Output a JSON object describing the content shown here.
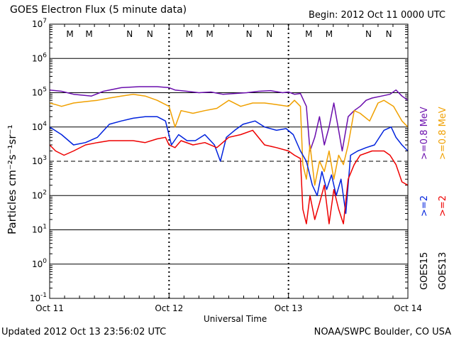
{
  "header": {
    "title": "GOES Electron Flux (5 minute data)",
    "begin": "Begin: 2012 Oct 11 0000 UTC"
  },
  "footer": {
    "updated": "Updated 2012 Oct 13 23:56:02 UTC",
    "credit": "NOAA/SWPC Boulder, CO USA"
  },
  "colors": {
    "gt2_goes15": "#0022dd",
    "gt2_goes13": "#ee0000",
    "gt08_goes15": "#6a0dad",
    "gt08_goes13": "#f0a000",
    "midnight_markers": "#0000cc",
    "noon_markers": "#cc0000"
  },
  "chart_data": {
    "type": "line",
    "title": "GOES Electron Flux (5 minute data)",
    "xlabel": "Universal Time",
    "ylabel": "Particles cm⁻²s⁻¹sr⁻¹",
    "yscale": "log",
    "ylim": [
      0.1,
      10000000
    ],
    "xlim_days": [
      0,
      3
    ],
    "x_tick_labels": [
      "Oct 11",
      "Oct 12",
      "Oct 13",
      "Oct 14"
    ],
    "y_tick_labels": [
      {
        "base": "10",
        "exp": "7"
      },
      {
        "base": "10",
        "exp": "6"
      },
      {
        "base": "10",
        "exp": "5"
      },
      {
        "base": "10",
        "exp": "4"
      },
      {
        "base": "10",
        "exp": "3"
      },
      {
        "base": "10",
        "exp": "2"
      },
      {
        "base": "10",
        "exp": "1"
      },
      {
        "base": "10",
        "exp": "0"
      },
      {
        "base": "10",
        "exp": "-1"
      }
    ],
    "threshold_line": 1000,
    "markers": [
      {
        "label": "M",
        "day": 0.17,
        "color": "noon"
      },
      {
        "label": "M",
        "day": 0.33,
        "color": "midnight"
      },
      {
        "label": "N",
        "day": 0.67,
        "color": "noon"
      },
      {
        "label": "N",
        "day": 0.84,
        "color": "midnight"
      },
      {
        "label": "M",
        "day": 1.17,
        "color": "noon"
      },
      {
        "label": "M",
        "day": 1.34,
        "color": "midnight"
      },
      {
        "label": "N",
        "day": 1.67,
        "color": "noon"
      },
      {
        "label": "N",
        "day": 1.84,
        "color": "midnight"
      },
      {
        "label": "M",
        "day": 2.17,
        "color": "noon"
      },
      {
        "label": "M",
        "day": 2.34,
        "color": "midnight"
      },
      {
        "label": "N",
        "day": 2.67,
        "color": "noon"
      },
      {
        "label": "N",
        "day": 2.84,
        "color": "midnight"
      }
    ],
    "series": [
      {
        "name": ">=0.8 MeV",
        "satellite": "GOES15",
        "color_key": "gt08_goes15",
        "x": [
          0,
          0.1,
          0.2,
          0.35,
          0.45,
          0.6,
          0.75,
          0.9,
          1.0,
          1.05,
          1.15,
          1.25,
          1.35,
          1.45,
          1.55,
          1.65,
          1.75,
          1.85,
          1.95,
          2.0,
          2.05,
          2.1,
          2.15,
          2.18,
          2.22,
          2.26,
          2.3,
          2.34,
          2.38,
          2.42,
          2.45,
          2.5,
          2.55,
          2.6,
          2.65,
          2.7,
          2.78,
          2.85,
          2.9,
          2.95,
          3.0
        ],
        "y": [
          120000,
          110000,
          90000,
          80000,
          110000,
          140000,
          150000,
          150000,
          140000,
          120000,
          110000,
          100000,
          105000,
          90000,
          95000,
          100000,
          110000,
          115000,
          100000,
          105000,
          90000,
          95000,
          40000,
          2000,
          5000,
          20000,
          3000,
          10000,
          50000,
          8000,
          2000,
          20000,
          30000,
          40000,
          60000,
          70000,
          80000,
          90000,
          120000,
          80000,
          60000
        ]
      },
      {
        "name": ">=0.8 MeV",
        "satellite": "GOES13",
        "color_key": "gt08_goes13",
        "x": [
          0,
          0.05,
          0.1,
          0.2,
          0.3,
          0.4,
          0.5,
          0.6,
          0.7,
          0.8,
          0.9,
          1.0,
          1.05,
          1.1,
          1.2,
          1.3,
          1.4,
          1.5,
          1.6,
          1.7,
          1.8,
          1.9,
          2.0,
          2.05,
          2.1,
          2.12,
          2.15,
          2.18,
          2.22,
          2.26,
          2.3,
          2.34,
          2.38,
          2.42,
          2.46,
          2.5,
          2.55,
          2.6,
          2.68,
          2.75,
          2.8,
          2.88,
          2.95,
          3.0
        ],
        "y": [
          50000,
          45000,
          40000,
          50000,
          55000,
          60000,
          70000,
          80000,
          90000,
          80000,
          60000,
          40000,
          10000,
          30000,
          25000,
          30000,
          35000,
          60000,
          40000,
          50000,
          50000,
          45000,
          40000,
          60000,
          40000,
          800,
          300,
          3000,
          200,
          1000,
          500,
          2000,
          300,
          1500,
          800,
          3000,
          30000,
          25000,
          15000,
          50000,
          60000,
          40000,
          15000,
          10000
        ]
      },
      {
        "name": ">=2 MeV",
        "satellite": "GOES15",
        "color_key": "gt2_goes15",
        "x": [
          0,
          0.1,
          0.2,
          0.3,
          0.4,
          0.5,
          0.6,
          0.7,
          0.8,
          0.9,
          0.97,
          1.02,
          1.08,
          1.15,
          1.22,
          1.3,
          1.38,
          1.43,
          1.48,
          1.55,
          1.62,
          1.72,
          1.8,
          1.9,
          1.98,
          2.04,
          2.1,
          2.15,
          2.2,
          2.24,
          2.28,
          2.32,
          2.36,
          2.4,
          2.44,
          2.48,
          2.52,
          2.58,
          2.65,
          2.72,
          2.8,
          2.86,
          2.9,
          2.95,
          3.0
        ],
        "y": [
          10000,
          6000,
          3000,
          3500,
          5000,
          12000,
          15000,
          18000,
          20000,
          20000,
          15000,
          3000,
          6000,
          4000,
          4000,
          6000,
          3000,
          1000,
          5000,
          8000,
          12000,
          15000,
          10000,
          8000,
          9000,
          6000,
          2000,
          1000,
          200,
          100,
          500,
          150,
          400,
          100,
          300,
          30,
          1500,
          2000,
          2500,
          3000,
          8000,
          10000,
          5000,
          3000,
          2000
        ]
      },
      {
        "name": ">=2 MeV",
        "satellite": "GOES13",
        "color_key": "gt2_goes13",
        "x": [
          0,
          0.05,
          0.12,
          0.2,
          0.3,
          0.4,
          0.5,
          0.6,
          0.7,
          0.8,
          0.9,
          0.97,
          1.0,
          1.05,
          1.1,
          1.2,
          1.3,
          1.4,
          1.5,
          1.6,
          1.7,
          1.8,
          1.9,
          2.0,
          2.05,
          2.1,
          2.12,
          2.15,
          2.18,
          2.22,
          2.26,
          2.3,
          2.34,
          2.38,
          2.42,
          2.46,
          2.5,
          2.55,
          2.6,
          2.7,
          2.8,
          2.85,
          2.9,
          2.95,
          3.0
        ],
        "y": [
          3000,
          2000,
          1500,
          2000,
          3000,
          3500,
          4000,
          4000,
          4000,
          3500,
          4500,
          5000,
          3000,
          2500,
          4000,
          3000,
          3500,
          2500,
          5000,
          6000,
          8000,
          3000,
          2500,
          2000,
          1500,
          1200,
          40,
          15,
          100,
          20,
          60,
          200,
          15,
          150,
          40,
          15,
          300,
          800,
          1500,
          2000,
          2000,
          1500,
          800,
          250,
          200
        ]
      }
    ],
    "legend": {
      "right_labels": [
        {
          "text": ">=0.8 MeV",
          "color_key": "gt08_goes15"
        },
        {
          "text": ">=0.8 MeV",
          "color_key": "gt08_goes13"
        },
        {
          "text": ">=2",
          "color_key": "gt2_goes15"
        },
        {
          "text": ">=2",
          "color_key": "gt2_goes13"
        },
        {
          "text": "GOES15",
          "color_key": "black"
        },
        {
          "text": "GOES13",
          "color_key": "black"
        }
      ]
    }
  }
}
